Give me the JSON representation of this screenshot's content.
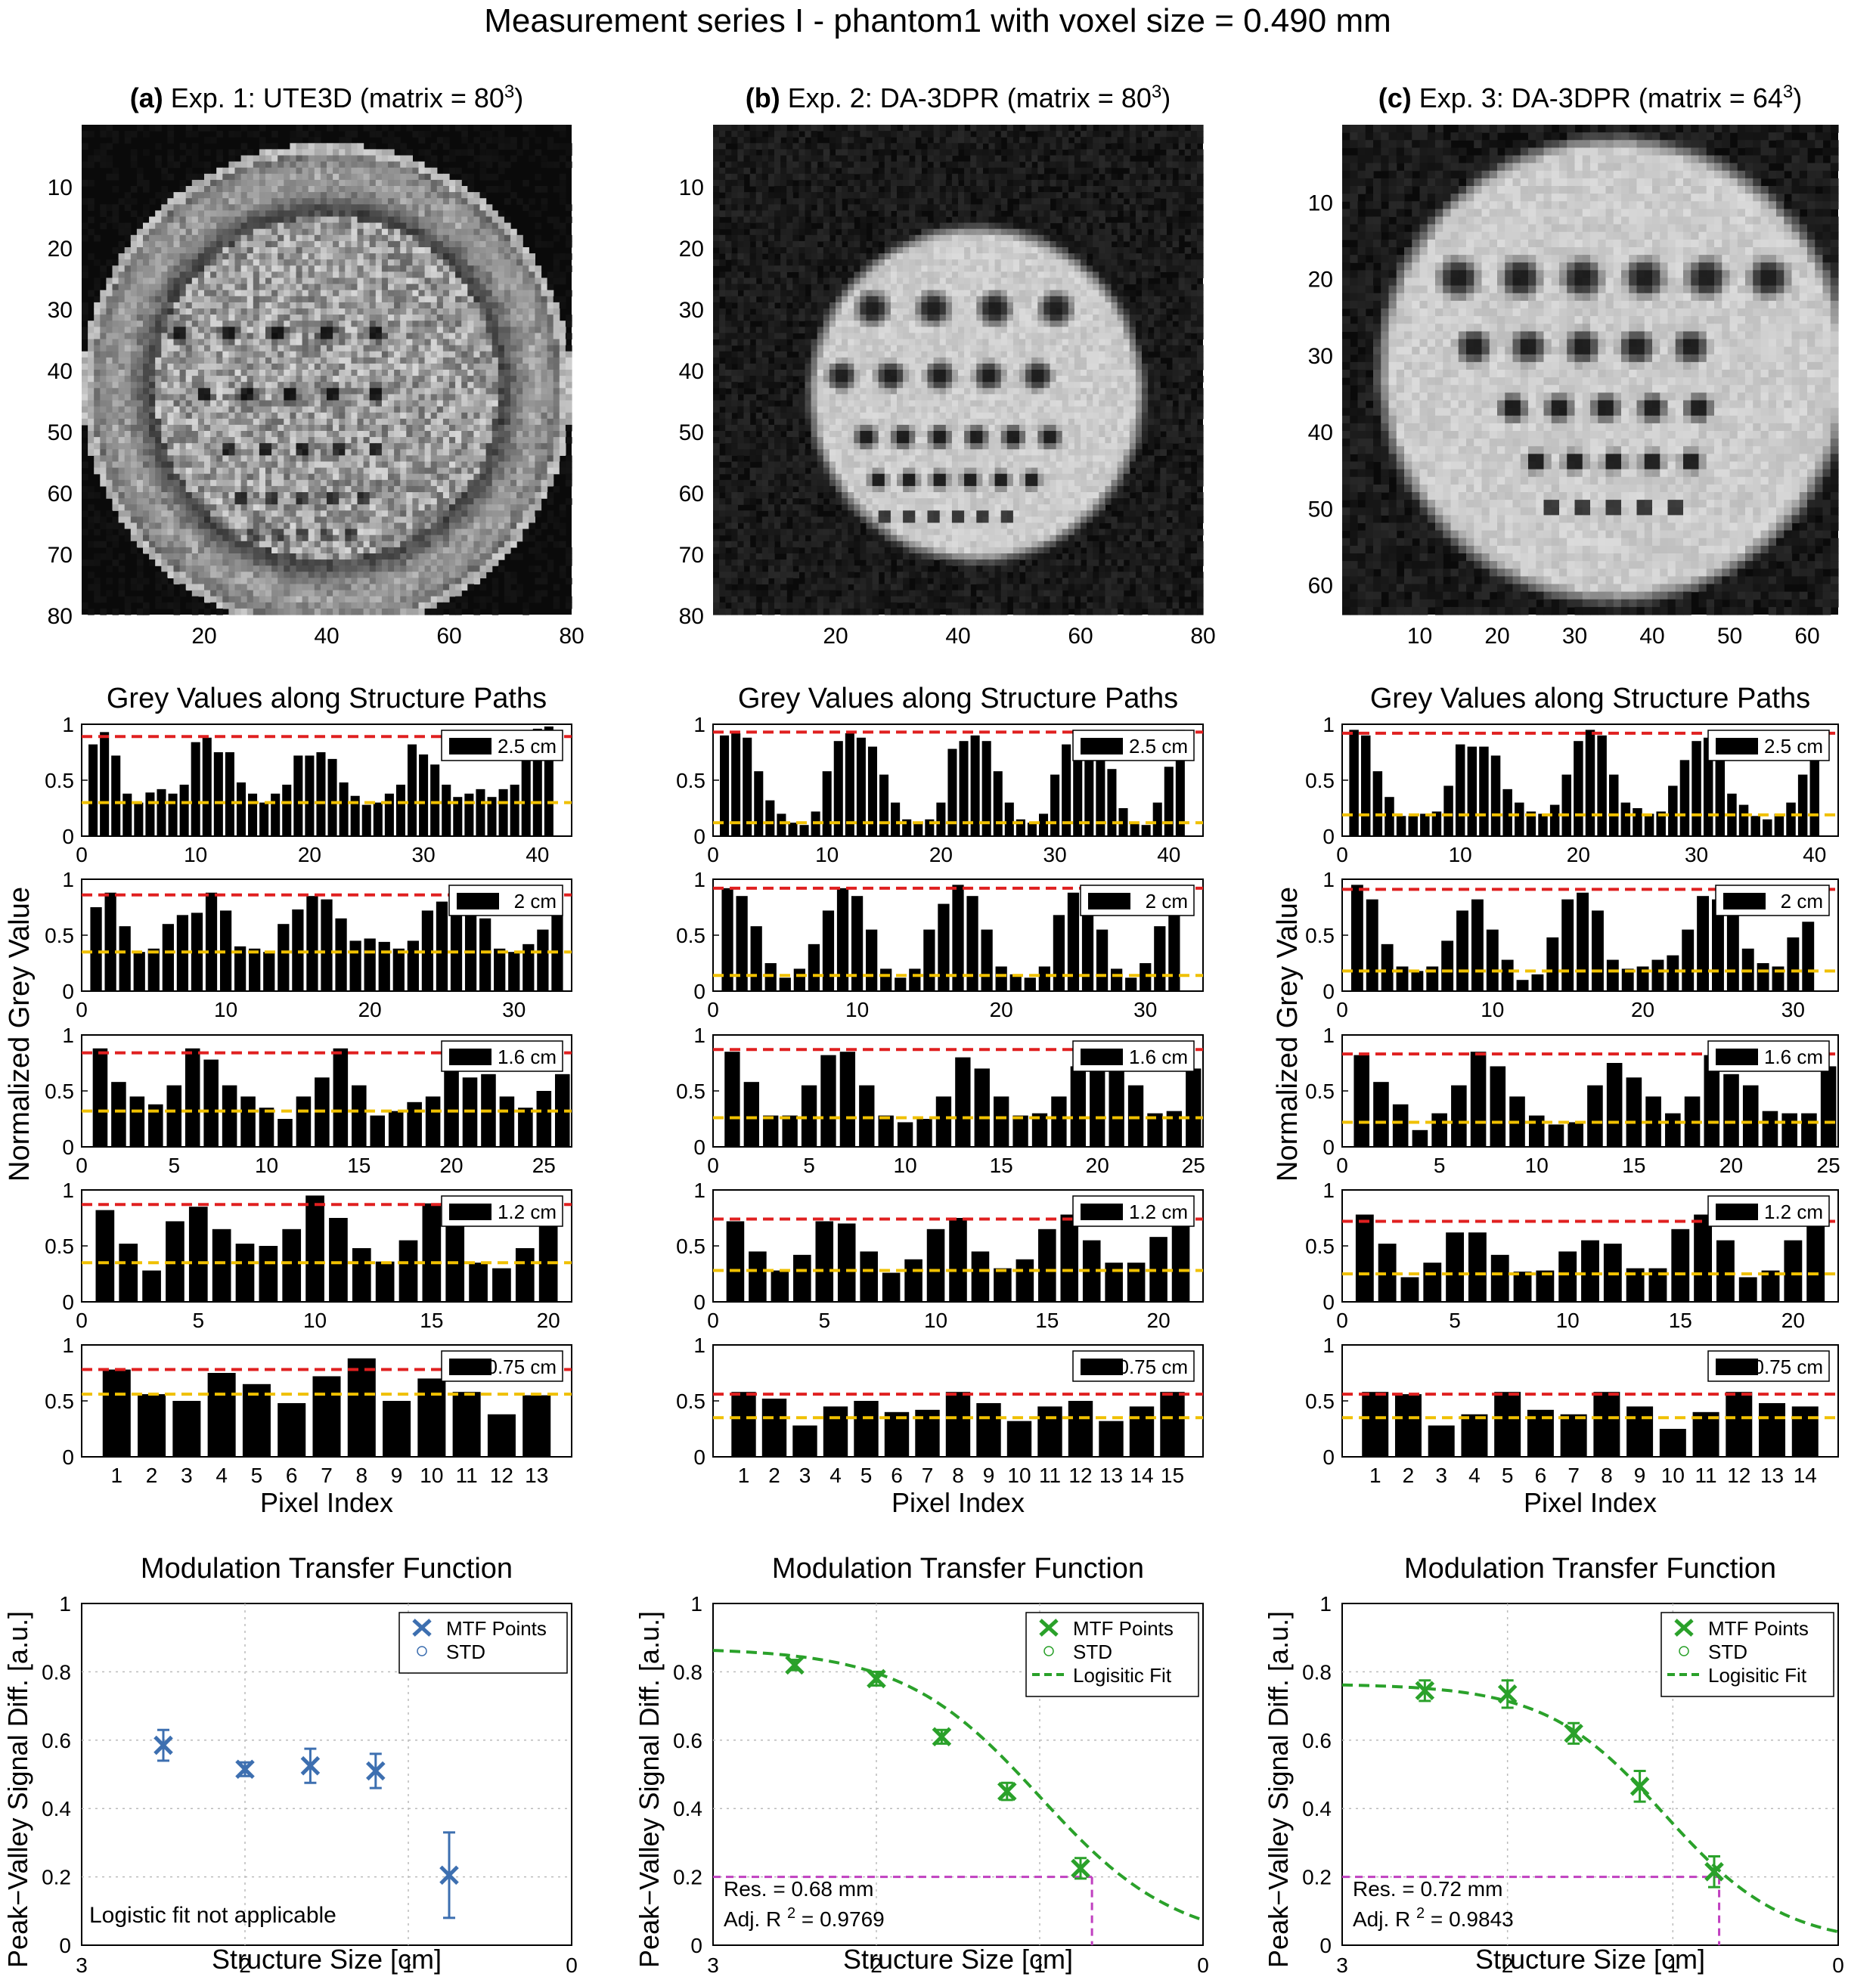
{
  "page": {
    "title": "Measurement series I - phantom1 with voxel size = 0.490 mm"
  },
  "colors": {
    "blue": "#3d6fb0",
    "green": "#2aa12a",
    "red": "#e02020",
    "yellow": "#f0c000",
    "magenta": "#c040c0"
  },
  "chart_data": [
    {
      "type": "heatmap",
      "panel": "(a)",
      "title_prefix": "(a)",
      "title": "Exp. 1: UTE3D (matrix = 80",
      "title_sup": "3",
      "title_suffix": ")",
      "x_ticks": [
        "20",
        "40",
        "60",
        "80"
      ],
      "y_ticks": [
        "10",
        "20",
        "30",
        "40",
        "50",
        "60",
        "70",
        "80"
      ],
      "matrix": 80,
      "ring": true
    },
    {
      "type": "heatmap",
      "panel": "(b)",
      "title_prefix": "(b)",
      "title": "Exp. 2: DA-3DPR (matrix = 80",
      "title_sup": "3",
      "title_suffix": ")",
      "x_ticks": [
        "20",
        "40",
        "60",
        "80"
      ],
      "y_ticks": [
        "10",
        "20",
        "30",
        "40",
        "50",
        "60",
        "70",
        "80"
      ],
      "matrix": 80,
      "ring": false
    },
    {
      "type": "heatmap",
      "panel": "(c)",
      "title_prefix": "(c)",
      "title": "Exp. 3: DA-3DPR (matrix = 64",
      "title_sup": "3",
      "title_suffix": ")",
      "x_ticks": [
        "10",
        "20",
        "30",
        "40",
        "50",
        "60"
      ],
      "y_ticks": [
        "10",
        "20",
        "30",
        "40",
        "50",
        "60"
      ],
      "matrix": 64,
      "ring": false
    },
    {
      "type": "bar",
      "column": 1,
      "title": "Grey Values along Structure Paths",
      "ylabel": "Normalized Grey Value",
      "xlabel": "Pixel Index",
      "ylim": [
        0,
        1
      ],
      "yticks": [
        "0",
        "0.5",
        "1"
      ],
      "panels": [
        {
          "legend": "2.5 cm",
          "xlim": [
            0,
            43
          ],
          "xticks": [
            0,
            10,
            20,
            30,
            40
          ],
          "peak": 0.89,
          "valley": 0.3,
          "values": [
            0.82,
            0.93,
            0.72,
            0.38,
            0.3,
            0.39,
            0.42,
            0.38,
            0.46,
            0.84,
            0.88,
            0.75,
            0.75,
            0.48,
            0.38,
            0.3,
            0.38,
            0.46,
            0.72,
            0.72,
            0.75,
            0.69,
            0.48,
            0.36,
            0.28,
            0.3,
            0.38,
            0.46,
            0.82,
            0.73,
            0.64,
            0.46,
            0.35,
            0.38,
            0.42,
            0.35,
            0.42,
            0.46,
            0.85,
            0.96,
            0.98
          ]
        },
        {
          "legend": "2 cm",
          "xlim": [
            0,
            34
          ],
          "xticks": [
            0,
            10,
            20,
            30
          ],
          "peak": 0.86,
          "valley": 0.35,
          "values": [
            0.75,
            0.88,
            0.58,
            0.35,
            0.38,
            0.6,
            0.68,
            0.7,
            0.88,
            0.72,
            0.4,
            0.38,
            0.35,
            0.6,
            0.73,
            0.85,
            0.82,
            0.65,
            0.45,
            0.47,
            0.44,
            0.38,
            0.45,
            0.72,
            0.8,
            0.75,
            0.92,
            0.65,
            0.38,
            0.35,
            0.42,
            0.55,
            0.9
          ]
        },
        {
          "legend": "1.6 cm",
          "xlim": [
            0,
            26.5
          ],
          "xticks": [
            0,
            5,
            10,
            15,
            20,
            25
          ],
          "peak": 0.84,
          "valley": 0.32,
          "values": [
            0.88,
            0.58,
            0.45,
            0.38,
            0.55,
            0.88,
            0.78,
            0.55,
            0.45,
            0.35,
            0.25,
            0.45,
            0.62,
            0.88,
            0.55,
            0.28,
            0.32,
            0.4,
            0.45,
            0.68,
            0.62,
            0.65,
            0.45,
            0.35,
            0.5,
            0.65
          ]
        },
        {
          "legend": "1.2 cm",
          "xlim": [
            0,
            21
          ],
          "xticks": [
            0,
            5,
            10,
            15,
            20
          ],
          "peak": 0.87,
          "valley": 0.35,
          "values": [
            0.82,
            0.52,
            0.28,
            0.72,
            0.85,
            0.65,
            0.52,
            0.5,
            0.65,
            0.95,
            0.75,
            0.48,
            0.36,
            0.55,
            0.88,
            0.75,
            0.35,
            0.3,
            0.48,
            0.85
          ]
        },
        {
          "legend": "0.75 cm",
          "xlim": [
            0,
            14
          ],
          "categories": [
            "1",
            "2",
            "3",
            "4",
            "5",
            "6",
            "7",
            "8",
            "9",
            "10",
            "11",
            "12",
            "13"
          ],
          "peak": 0.78,
          "valley": 0.56,
          "values": [
            0.78,
            0.56,
            0.5,
            0.75,
            0.65,
            0.48,
            0.72,
            0.88,
            0.5,
            0.7,
            0.58,
            0.38,
            0.55
          ]
        }
      ]
    },
    {
      "type": "bar",
      "column": 2,
      "title": "Grey Values along Structure Paths",
      "xlabel": "Pixel Index",
      "ylim": [
        0,
        1
      ],
      "yticks": [
        "0",
        "0.5",
        "1"
      ],
      "panels": [
        {
          "legend": "2.5 cm",
          "xlim": [
            0,
            43
          ],
          "xticks": [
            0,
            10,
            20,
            30,
            40
          ],
          "peak": 0.93,
          "valley": 0.12,
          "values": [
            0.9,
            0.92,
            0.88,
            0.58,
            0.32,
            0.2,
            0.12,
            0.1,
            0.22,
            0.58,
            0.85,
            0.92,
            0.88,
            0.8,
            0.55,
            0.3,
            0.15,
            0.12,
            0.15,
            0.3,
            0.78,
            0.85,
            0.9,
            0.85,
            0.58,
            0.3,
            0.15,
            0.12,
            0.2,
            0.55,
            0.82,
            0.92,
            0.88,
            0.82,
            0.6,
            0.25,
            0.12,
            0.1,
            0.3,
            0.62,
            0.95
          ]
        },
        {
          "legend": "2 cm",
          "xlim": [
            0,
            34
          ],
          "xticks": [
            0,
            10,
            20,
            30
          ],
          "peak": 0.92,
          "valley": 0.14,
          "values": [
            0.92,
            0.85,
            0.58,
            0.25,
            0.12,
            0.2,
            0.42,
            0.72,
            0.92,
            0.85,
            0.55,
            0.2,
            0.12,
            0.2,
            0.55,
            0.78,
            0.95,
            0.85,
            0.55,
            0.22,
            0.15,
            0.12,
            0.22,
            0.68,
            0.88,
            0.85,
            0.55,
            0.2,
            0.12,
            0.25,
            0.58,
            0.9
          ]
        },
        {
          "legend": "1.6 cm",
          "xlim": [
            0,
            25.5
          ],
          "xticks": [
            0,
            5,
            10,
            15,
            20,
            25
          ],
          "peak": 0.87,
          "valley": 0.26,
          "values": [
            0.85,
            0.58,
            0.28,
            0.28,
            0.55,
            0.82,
            0.85,
            0.55,
            0.28,
            0.22,
            0.25,
            0.45,
            0.8,
            0.7,
            0.45,
            0.28,
            0.3,
            0.45,
            0.72,
            0.9,
            0.78,
            0.55,
            0.3,
            0.32,
            0.7
          ]
        },
        {
          "legend": "1.2 cm",
          "xlim": [
            0,
            22
          ],
          "xticks": [
            0,
            5,
            10,
            15,
            20
          ],
          "peak": 0.74,
          "valley": 0.28,
          "values": [
            0.72,
            0.45,
            0.28,
            0.42,
            0.72,
            0.7,
            0.45,
            0.26,
            0.38,
            0.65,
            0.75,
            0.45,
            0.3,
            0.38,
            0.65,
            0.78,
            0.55,
            0.35,
            0.35,
            0.58,
            0.72
          ]
        },
        {
          "legend": "0.75 cm",
          "xlim": [
            0,
            16
          ],
          "categories": [
            "1",
            "2",
            "3",
            "4",
            "5",
            "6",
            "7",
            "8",
            "9",
            "10",
            "11",
            "12",
            "13",
            "14",
            "15"
          ],
          "peak": 0.56,
          "valley": 0.35,
          "values": [
            0.58,
            0.52,
            0.28,
            0.45,
            0.5,
            0.4,
            0.42,
            0.58,
            0.48,
            0.32,
            0.45,
            0.5,
            0.32,
            0.45,
            0.58
          ]
        }
      ]
    },
    {
      "type": "bar",
      "column": 3,
      "title": "Grey Values along Structure Paths",
      "xlabel": "Pixel Index",
      "ylabel": "Normalized Grey Value",
      "ylim": [
        0,
        1
      ],
      "yticks": [
        "0",
        "0.5",
        "1"
      ],
      "panels": [
        {
          "legend": "2.5 cm",
          "xlim": [
            0,
            42
          ],
          "xticks": [
            0,
            10,
            20,
            30,
            40
          ],
          "peak": 0.92,
          "valley": 0.19,
          "values": [
            0.95,
            0.9,
            0.58,
            0.35,
            0.18,
            0.18,
            0.2,
            0.22,
            0.45,
            0.82,
            0.8,
            0.8,
            0.72,
            0.42,
            0.3,
            0.22,
            0.2,
            0.28,
            0.55,
            0.85,
            0.95,
            0.9,
            0.55,
            0.3,
            0.25,
            0.2,
            0.22,
            0.45,
            0.68,
            0.85,
            0.88,
            0.72,
            0.38,
            0.28,
            0.18,
            0.15,
            0.2,
            0.3,
            0.55,
            0.92
          ]
        },
        {
          "legend": "2 cm",
          "xlim": [
            0,
            33
          ],
          "xticks": [
            0,
            10,
            20,
            30
          ],
          "peak": 0.91,
          "valley": 0.18,
          "values": [
            0.95,
            0.82,
            0.42,
            0.22,
            0.18,
            0.22,
            0.45,
            0.72,
            0.82,
            0.55,
            0.28,
            0.1,
            0.15,
            0.48,
            0.82,
            0.88,
            0.72,
            0.28,
            0.2,
            0.22,
            0.28,
            0.32,
            0.55,
            0.85,
            0.82,
            0.72,
            0.38,
            0.25,
            0.22,
            0.48,
            0.62
          ]
        },
        {
          "legend": "1.6 cm",
          "xlim": [
            0,
            25.5
          ],
          "xticks": [
            0,
            5,
            10,
            15,
            20,
            25
          ],
          "peak": 0.83,
          "valley": 0.22,
          "values": [
            0.82,
            0.58,
            0.38,
            0.15,
            0.3,
            0.55,
            0.85,
            0.72,
            0.45,
            0.28,
            0.2,
            0.22,
            0.55,
            0.75,
            0.62,
            0.45,
            0.3,
            0.45,
            0.82,
            0.65,
            0.55,
            0.32,
            0.3,
            0.3,
            0.72
          ]
        },
        {
          "legend": "1.2 cm",
          "xlim": [
            0,
            22
          ],
          "xticks": [
            0,
            5,
            10,
            15,
            20
          ],
          "peak": 0.72,
          "valley": 0.25,
          "values": [
            0.78,
            0.52,
            0.22,
            0.35,
            0.62,
            0.62,
            0.42,
            0.27,
            0.28,
            0.45,
            0.55,
            0.52,
            0.3,
            0.3,
            0.65,
            0.78,
            0.55,
            0.22,
            0.28,
            0.55,
            0.68
          ]
        },
        {
          "legend": "0.75 cm",
          "xlim": [
            0,
            15
          ],
          "categories": [
            "1",
            "2",
            "3",
            "4",
            "5",
            "6",
            "7",
            "8",
            "9",
            "10",
            "11",
            "12",
            "13",
            "14"
          ],
          "peak": 0.56,
          "valley": 0.35,
          "values": [
            0.58,
            0.56,
            0.28,
            0.38,
            0.58,
            0.42,
            0.38,
            0.58,
            0.45,
            0.25,
            0.4,
            0.58,
            0.48,
            0.45
          ]
        }
      ]
    },
    {
      "type": "scatter",
      "column": 1,
      "title": "Modulation Transfer Function",
      "xlabel": "Structure Size [cm]",
      "ylabel": "Peak−Valley Signal Diff. [a.u.]",
      "xlim": [
        3,
        0
      ],
      "ylim": [
        0,
        1
      ],
      "xticks": [
        "3",
        "2",
        "1",
        "0"
      ],
      "yticks": [
        "0",
        "0.2",
        "0.4",
        "0.6",
        "0.8",
        "1"
      ],
      "legend": [
        "MTF Points",
        "STD"
      ],
      "x": [
        2.5,
        2.0,
        1.6,
        1.2,
        0.75
      ],
      "y": [
        0.585,
        0.515,
        0.525,
        0.51,
        0.205
      ],
      "err": [
        0.045,
        0.02,
        0.05,
        0.05,
        0.125
      ],
      "note": "Logistic fit not applicable"
    },
    {
      "type": "line",
      "column": 2,
      "title": "Modulation Transfer Function",
      "xlabel": "Structure Size [cm]",
      "ylabel": "Peak−Valley Signal Diff. [a.u.]",
      "xlim": [
        3,
        0
      ],
      "ylim": [
        0,
        1
      ],
      "xticks": [
        "3",
        "2",
        "1",
        "0"
      ],
      "yticks": [
        "0",
        "0.2",
        "0.4",
        "0.6",
        "0.8",
        "1"
      ],
      "legend": [
        "MTF Points",
        "STD",
        "Logisitic Fit"
      ],
      "x": [
        2.5,
        2.0,
        1.6,
        1.2,
        0.75
      ],
      "y": [
        0.82,
        0.78,
        0.61,
        0.45,
        0.225
      ],
      "err": [
        0.015,
        0.02,
        0.02,
        0.025,
        0.03
      ],
      "fit": {
        "top": 0.87,
        "bottom": 0.0,
        "x0": 1.0,
        "s": 0.42
      },
      "res_x": 0.68,
      "res_line": 0.2,
      "res_text": "Res. = 0.68 mm",
      "r2_prefix": "Adj. R",
      "r2_sup": "2",
      "r2_value": " = 0.9769"
    },
    {
      "type": "line",
      "column": 3,
      "title": "Modulation Transfer Function",
      "xlabel": "Structure Size [cm]",
      "ylabel": "Peak−Valley Signal Diff. [a.u.]",
      "xlim": [
        3,
        0
      ],
      "ylim": [
        0,
        1
      ],
      "xticks": [
        "3",
        "2",
        "1",
        "0"
      ],
      "yticks": [
        "0",
        "0.2",
        "0.4",
        "0.6",
        "0.8",
        "1"
      ],
      "legend": [
        "MTF Points",
        "STD",
        "Logisitic Fit"
      ],
      "x": [
        2.5,
        2.0,
        1.6,
        1.2,
        0.75
      ],
      "y": [
        0.745,
        0.735,
        0.62,
        0.465,
        0.215
      ],
      "err": [
        0.03,
        0.04,
        0.03,
        0.045,
        0.045
      ],
      "fit": {
        "top": 0.765,
        "bottom": 0.0,
        "x0": 1.05,
        "s": 0.36
      },
      "res_x": 0.72,
      "res_line": 0.2,
      "res_text": "Res. = 0.72 mm",
      "r2_prefix": "Adj. R",
      "r2_sup": "2",
      "r2_value": " = 0.9843"
    }
  ]
}
